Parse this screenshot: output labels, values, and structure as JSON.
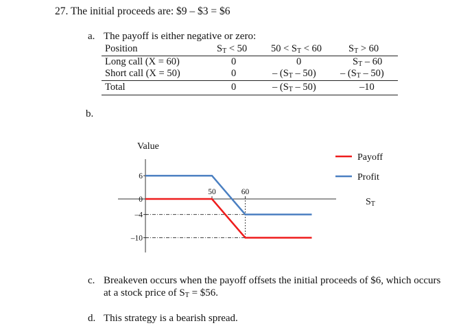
{
  "problem": {
    "title": "27. The initial proceeds are: $9 – $3 = $6"
  },
  "part_a": {
    "letter": "a.",
    "intro": "The payoff is either negative or zero:",
    "headers": [
      "Position",
      "S",
      "T",
      "< 50",
      "50 < S",
      "T",
      "< 60",
      "S",
      "T",
      "> 60"
    ],
    "rows": [
      {
        "label": "Long call (X = 60)",
        "c1": "0",
        "c2": "0",
        "c3": [
          "S",
          "T",
          " – 60"
        ]
      },
      {
        "label": "Short call (X = 50)",
        "c1": "0",
        "c2": [
          "– (S",
          "T",
          " – 50)"
        ],
        "c3": [
          "– (S",
          "T",
          " – 50)"
        ]
      },
      {
        "label": "Total",
        "c1": "0",
        "c2": [
          "– (S",
          "T",
          " – 50)"
        ],
        "c3": "–10"
      }
    ]
  },
  "part_b": {
    "letter": "b."
  },
  "chart_data": {
    "type": "line",
    "ylabel": "Value",
    "xlabel": [
      "S",
      "T"
    ],
    "x_ticks": [
      "50",
      "60"
    ],
    "y_ticks": [
      "6",
      "0",
      "–4",
      "–10"
    ],
    "series": [
      {
        "name": "Payoff",
        "color": "#ee1c1c",
        "x": [
          30,
          50,
          60,
          80
        ],
        "y": [
          0,
          0,
          -10,
          -10
        ]
      },
      {
        "name": "Profit",
        "color": "#4a7fc1",
        "x": [
          30,
          50,
          60,
          80
        ],
        "y": [
          6,
          6,
          -4,
          -4
        ]
      }
    ],
    "legend": [
      "Payoff",
      "Profit"
    ]
  },
  "part_c": {
    "letter": "c.",
    "line1": "Breakeven occurs when the payoff offsets the initial proceeds of $6, which occurs",
    "line2_pre": "at a stock price of S",
    "line2_sub": "T",
    "line2_post": " = $56."
  },
  "part_d": {
    "letter": "d.",
    "text": "This strategy is a bearish spread."
  }
}
